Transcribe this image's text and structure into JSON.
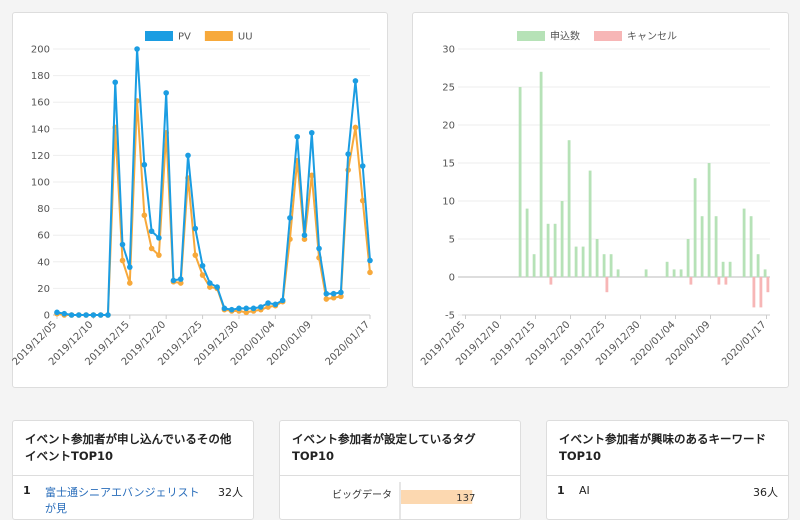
{
  "chart_data": [
    {
      "type": "line",
      "categories": [
        "2019/12/05",
        null,
        null,
        null,
        null,
        "2019/12/10",
        null,
        null,
        null,
        null,
        "2019/12/15",
        null,
        null,
        null,
        null,
        "2019/12/20",
        null,
        null,
        null,
        null,
        "2019/12/25",
        null,
        null,
        null,
        null,
        "2019/12/30",
        null,
        null,
        null,
        null,
        "2020/01/04",
        null,
        null,
        null,
        null,
        "2020/01/09",
        null,
        null,
        null,
        null,
        null,
        null,
        null,
        "2020/01/17"
      ],
      "series": [
        {
          "name": "PV",
          "color": "#1b9de2",
          "values": [
            2,
            1,
            0,
            0,
            0,
            0,
            0,
            0,
            175,
            53,
            36,
            200,
            113,
            63,
            58,
            167,
            26,
            27,
            120,
            65,
            37,
            24,
            21,
            5,
            4,
            5,
            5,
            5,
            6,
            9,
            8,
            11,
            73,
            134,
            60,
            137,
            50,
            16,
            16,
            17,
            121,
            176,
            112,
            41
          ]
        },
        {
          "name": "UU",
          "color": "#f7a93b",
          "values": [
            1,
            0,
            0,
            0,
            0,
            0,
            0,
            0,
            141,
            41,
            24,
            161,
            75,
            50,
            45,
            137,
            25,
            24,
            103,
            45,
            30,
            21,
            20,
            4,
            3,
            3,
            2,
            3,
            4,
            6,
            7,
            10,
            57,
            116,
            57,
            105,
            43,
            12,
            13,
            14,
            109,
            141,
            86,
            32
          ]
        }
      ],
      "ylim": [
        0,
        200
      ],
      "yticks": [
        0,
        20,
        40,
        60,
        80,
        100,
        120,
        140,
        160,
        180,
        200
      ],
      "grid": true
    },
    {
      "type": "bar",
      "categories": [
        "2019/12/05",
        null,
        null,
        null,
        null,
        "2019/12/10",
        null,
        null,
        null,
        null,
        "2019/12/15",
        null,
        null,
        null,
        null,
        "2019/12/20",
        null,
        null,
        null,
        null,
        "2019/12/25",
        null,
        null,
        null,
        null,
        "2019/12/30",
        null,
        null,
        null,
        null,
        "2020/01/04",
        null,
        null,
        null,
        null,
        "2020/01/09",
        null,
        null,
        null,
        null,
        null,
        null,
        null,
        "2020/01/17"
      ],
      "series": [
        {
          "name": "申込数",
          "color": "#b6e2b7",
          "values": [
            0,
            0,
            0,
            0,
            0,
            0,
            0,
            0,
            25,
            9,
            3,
            27,
            7,
            7,
            10,
            18,
            4,
            4,
            14,
            5,
            3,
            3,
            1,
            0,
            0,
            0,
            1,
            0,
            0,
            2,
            1,
            1,
            5,
            13,
            8,
            15,
            8,
            2,
            2,
            0,
            9,
            8,
            3,
            1
          ]
        },
        {
          "name": "キャンセル",
          "color": "#f7b6b6",
          "values": [
            0,
            0,
            0,
            0,
            0,
            0,
            0,
            0,
            0,
            0,
            0,
            0,
            -1,
            0,
            0,
            0,
            0,
            0,
            0,
            0,
            -2,
            0,
            0,
            0,
            0,
            0,
            0,
            0,
            0,
            0,
            0,
            0,
            -1,
            0,
            0,
            0,
            -1,
            -1,
            0,
            0,
            0,
            -4,
            -4,
            -2
          ]
        }
      ],
      "ylim": [
        -5,
        30
      ],
      "yticks": [
        -5,
        0,
        5,
        10,
        15,
        20,
        25,
        30
      ],
      "grid": true
    }
  ],
  "panels": [
    {
      "title": "イベント参加者が申し込んでいるその他イベントTOP10",
      "rows": [
        [
          "1",
          "富士通シニアエバンジェリストが見",
          "32人"
        ]
      ]
    },
    {
      "title": "イベント参加者が設定しているタグTOP10",
      "bars": [
        {
          "label": "ビッグデータ",
          "value": 137
        }
      ]
    },
    {
      "title": "イベント参加者が興味のあるキーワードTOP10",
      "rows": [
        [
          "1",
          "AI",
          "36人"
        ]
      ]
    }
  ]
}
